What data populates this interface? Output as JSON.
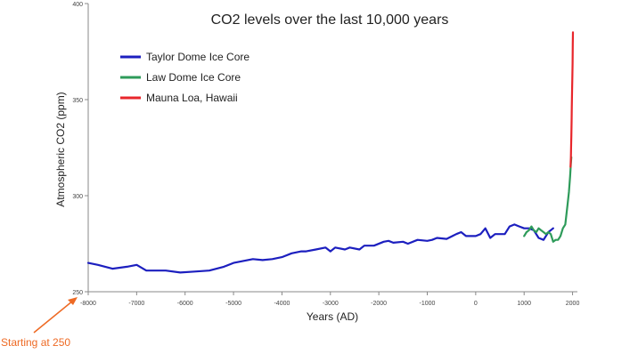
{
  "chart_data": {
    "type": "line",
    "title": "CO2 levels over the last 10,000 years",
    "xlabel": "Years (AD)",
    "ylabel": "Atmospheric CO2 (ppm)",
    "xlim": [
      -8000,
      2100
    ],
    "ylim": [
      250,
      400
    ],
    "x_ticks": [
      -8000,
      -7000,
      -6000,
      -5000,
      -4000,
      -3000,
      -2000,
      -1000,
      0,
      1000,
      2000
    ],
    "y_ticks": [
      250,
      300,
      350,
      400
    ],
    "grid": false,
    "legend_position": "top-left",
    "series": [
      {
        "name": "Taylor Dome Ice Core",
        "color": "#1c1fbf",
        "x": [
          -8000,
          -7800,
          -7500,
          -7200,
          -7000,
          -6800,
          -6400,
          -6100,
          -5800,
          -5500,
          -5200,
          -5000,
          -4800,
          -4600,
          -4400,
          -4200,
          -4000,
          -3800,
          -3600,
          -3500,
          -3300,
          -3100,
          -3000,
          -2900,
          -2700,
          -2600,
          -2400,
          -2300,
          -2100,
          -1900,
          -1800,
          -1700,
          -1500,
          -1400,
          -1200,
          -1000,
          -900,
          -800,
          -600,
          -400,
          -300,
          -200,
          0,
          100,
          200,
          300,
          400,
          600,
          700,
          800,
          900,
          1000,
          1100,
          1200,
          1300,
          1400,
          1500,
          1600
        ],
        "y": [
          265,
          264,
          262,
          263,
          264,
          261,
          261,
          260,
          260.5,
          261,
          263,
          265,
          266,
          267,
          266.5,
          267,
          268,
          270,
          271,
          271,
          272,
          273,
          271,
          273,
          272,
          273,
          272,
          274,
          274,
          276,
          276.5,
          275.5,
          276,
          275,
          277,
          276.5,
          277,
          278,
          277.5,
          280,
          281,
          279,
          279,
          280,
          283,
          278,
          280,
          280,
          284,
          285,
          284,
          283,
          283,
          282,
          278,
          277,
          281,
          283
        ]
      },
      {
        "name": "Law Dome Ice Core",
        "color": "#2e9b5a",
        "x": [
          1000,
          1050,
          1100,
          1150,
          1200,
          1250,
          1300,
          1350,
          1400,
          1450,
          1500,
          1550,
          1600,
          1650,
          1700,
          1750,
          1800,
          1850,
          1900,
          1925,
          1950,
          1965,
          1975
        ],
        "y": [
          279,
          281,
          282,
          284,
          282,
          281,
          283,
          282,
          281,
          280,
          281,
          280,
          276,
          277,
          277,
          279,
          283,
          285,
          296,
          302,
          310,
          317,
          320
        ]
      },
      {
        "name": "Mauna Loa, Hawaii",
        "color": "#e8262b",
        "x": [
          1958,
          1965,
          1970,
          1975,
          1980,
          1985,
          1990,
          1995,
          2000,
          2005,
          2008
        ],
        "y": [
          315,
          320,
          325,
          331,
          339,
          346,
          354,
          361,
          369,
          379,
          385
        ]
      }
    ],
    "annotation": {
      "text": "Starting at 250",
      "points_to": {
        "x": -8000,
        "y": 250
      },
      "color": "#ee6a24"
    }
  }
}
